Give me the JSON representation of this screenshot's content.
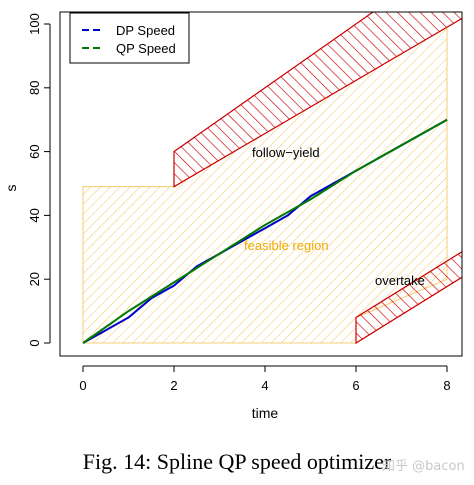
{
  "caption": "Fig. 14: Spline QP speed optimizer",
  "watermark": "知乎 @bacon",
  "chart_data": {
    "type": "line",
    "title": "",
    "xlabel": "time",
    "ylabel": "s",
    "xlim": [
      0,
      8
    ],
    "ylim": [
      0,
      100
    ],
    "xticks": [
      0,
      2,
      4,
      6,
      8
    ],
    "yticks": [
      0,
      20,
      40,
      60,
      80,
      100
    ],
    "grid": false,
    "legend_position": "top-left",
    "series": [
      {
        "name": "DP Speed",
        "color": "#0000cc",
        "dash": "dashed",
        "x": [
          0,
          0.5,
          1.0,
          1.5,
          2.0,
          2.5,
          3.0,
          3.5,
          4.0,
          4.5,
          5.0,
          5.5,
          6.0,
          6.5,
          7.0,
          7.5,
          8.0
        ],
        "y": [
          0,
          4,
          8,
          14,
          18,
          24,
          28,
          32,
          36,
          40,
          46,
          50,
          54,
          58,
          62,
          66,
          70
        ]
      },
      {
        "name": "QP Speed",
        "color": "#007a00",
        "dash": "dashed",
        "x": [
          0,
          1,
          2,
          3,
          4,
          5,
          6,
          7,
          8
        ],
        "y": [
          0,
          10,
          19,
          28,
          37,
          45,
          54,
          62,
          70
        ]
      }
    ],
    "regions": [
      {
        "label": "feasible region",
        "kind": "feasible",
        "color": "#f2c14e",
        "polygon": [
          [
            0,
            0
          ],
          [
            6,
            0
          ],
          [
            6,
            8
          ],
          [
            8,
            20
          ],
          [
            8,
            99
          ],
          [
            2,
            49
          ],
          [
            0,
            49
          ]
        ]
      },
      {
        "label": "follow−yield",
        "kind": "obstacle",
        "color": "#cc0000",
        "polygon": [
          [
            2,
            50
          ],
          [
            2,
            60
          ],
          [
            6.4,
            104
          ],
          [
            8.6,
            104
          ],
          [
            2,
            49
          ]
        ]
      },
      {
        "label": "overtake",
        "kind": "obstacle",
        "color": "#cc0000",
        "polygon": [
          [
            6,
            0
          ],
          [
            6,
            8
          ],
          [
            8.6,
            31
          ],
          [
            8.6,
            23
          ]
        ]
      }
    ]
  }
}
